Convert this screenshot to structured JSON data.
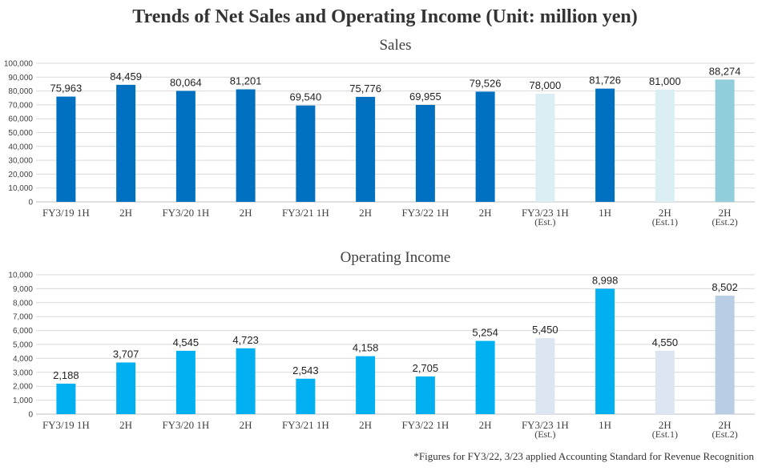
{
  "title": "Trends of Net Sales and Operating Income (Unit: million yen)",
  "footnote": "*Figures for FY3/22, 3/23 applied  Accounting Standard for Revenue Recognition",
  "chart_data": [
    {
      "type": "bar",
      "title": "Sales",
      "categories": [
        [
          "FY3/19 1H"
        ],
        [
          "2H"
        ],
        [
          "FY3/20 1H"
        ],
        [
          "2H"
        ],
        [
          "FY3/21 1H"
        ],
        [
          "2H"
        ],
        [
          "FY3/22 1H"
        ],
        [
          "2H"
        ],
        [
          "FY3/23 1H",
          "(Est.)"
        ],
        [
          "1H"
        ],
        [
          "2H",
          "(Est.1)"
        ],
        [
          "2H",
          "(Est.2)"
        ]
      ],
      "values": [
        75963,
        84459,
        80064,
        81201,
        69540,
        75776,
        69955,
        79526,
        78000,
        81726,
        81000,
        88274
      ],
      "value_labels": [
        "75,963",
        "84,459",
        "80,064",
        "81,201",
        "69,540",
        "75,776",
        "69,955",
        "79,526",
        "78,000",
        "81,726",
        "81,000",
        "88,274"
      ],
      "colors": [
        "#0070c0",
        "#0070c0",
        "#0070c0",
        "#0070c0",
        "#0070c0",
        "#0070c0",
        "#0070c0",
        "#0070c0",
        "#daeef3",
        "#0070c0",
        "#daeef3",
        "#92cddc"
      ],
      "ylim": [
        0,
        100000
      ],
      "yticks": [
        "0",
        "10,000",
        "20,000",
        "30,000",
        "40,000",
        "50,000",
        "60,000",
        "70,000",
        "80,000",
        "90,000",
        "100,000"
      ],
      "grid": true,
      "xlabel": "",
      "ylabel": ""
    },
    {
      "type": "bar",
      "title": "Operating Income",
      "categories": [
        [
          "FY3/19 1H"
        ],
        [
          "2H"
        ],
        [
          "FY3/20 1H"
        ],
        [
          "2H"
        ],
        [
          "FY3/21 1H"
        ],
        [
          "2H"
        ],
        [
          "FY3/22 1H"
        ],
        [
          "2H"
        ],
        [
          "FY3/23 1H",
          "(Est.)"
        ],
        [
          "1H"
        ],
        [
          "2H",
          "(Est.1)"
        ],
        [
          "2H",
          "(Est.2)"
        ]
      ],
      "values": [
        2188,
        3707,
        4545,
        4723,
        2543,
        4158,
        2705,
        5254,
        5450,
        8998,
        4550,
        8502
      ],
      "value_labels": [
        "2,188",
        "3,707",
        "4,545",
        "4,723",
        "2,543",
        "4,158",
        "2,705",
        "5,254",
        "5,450",
        "8,998",
        "4,550",
        "8,502"
      ],
      "colors": [
        "#00b0f0",
        "#00b0f0",
        "#00b0f0",
        "#00b0f0",
        "#00b0f0",
        "#00b0f0",
        "#00b0f0",
        "#00b0f0",
        "#dce6f2",
        "#00b0f0",
        "#dce6f2",
        "#b9cde5"
      ],
      "ylim": [
        0,
        10000
      ],
      "yticks": [
        "0",
        "1,000",
        "2,000",
        "3,000",
        "4,000",
        "5,000",
        "6,000",
        "7,000",
        "8,000",
        "9,000",
        "10,000"
      ],
      "grid": true,
      "xlabel": "",
      "ylabel": ""
    }
  ]
}
